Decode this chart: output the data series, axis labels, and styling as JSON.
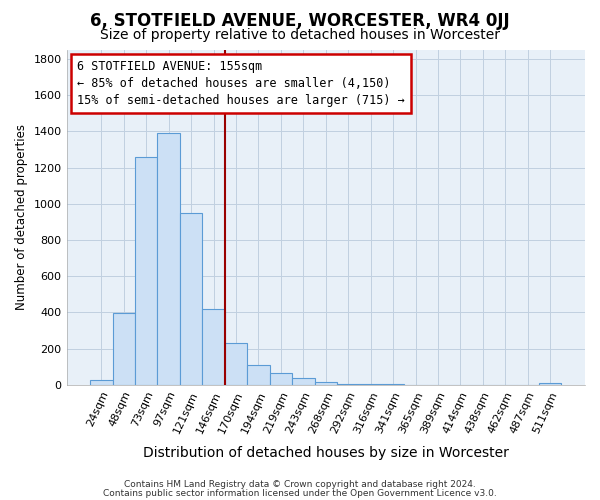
{
  "title": "6, STOTFIELD AVENUE, WORCESTER, WR4 0JJ",
  "subtitle": "Size of property relative to detached houses in Worcester",
  "xlabel": "Distribution of detached houses by size in Worcester",
  "ylabel": "Number of detached properties",
  "bar_labels": [
    "24sqm",
    "48sqm",
    "73sqm",
    "97sqm",
    "121sqm",
    "146sqm",
    "170sqm",
    "194sqm",
    "219sqm",
    "243sqm",
    "268sqm",
    "292sqm",
    "316sqm",
    "341sqm",
    "365sqm",
    "389sqm",
    "414sqm",
    "438sqm",
    "462sqm",
    "487sqm",
    "511sqm"
  ],
  "bar_values": [
    25,
    395,
    1260,
    1390,
    950,
    420,
    230,
    110,
    65,
    40,
    15,
    5,
    5,
    3,
    2,
    2,
    2,
    1,
    1,
    1,
    10
  ],
  "bar_color": "#cce0f5",
  "bar_edge_color": "#5b9bd5",
  "ylim": [
    0,
    1850
  ],
  "yticks": [
    0,
    200,
    400,
    600,
    800,
    1000,
    1200,
    1400,
    1600,
    1800
  ],
  "vline_color": "#990000",
  "annotation_box_title": "6 STOTFIELD AVENUE: 155sqm",
  "annotation_line1": "← 85% of detached houses are smaller (4,150)",
  "annotation_line2": "15% of semi-detached houses are larger (715) →",
  "annotation_box_color": "#ffffff",
  "annotation_box_edge_color": "#cc0000",
  "footer_line1": "Contains HM Land Registry data © Crown copyright and database right 2024.",
  "footer_line2": "Contains public sector information licensed under the Open Government Licence v3.0.",
  "background_color": "#ffffff",
  "plot_bg_color": "#e8f0f8",
  "grid_color": "#c0cfe0",
  "title_fontsize": 12,
  "subtitle_fontsize": 10,
  "xlabel_fontsize": 10,
  "ylabel_fontsize": 8.5,
  "tick_fontsize": 8,
  "annotation_fontsize": 8.5,
  "footer_fontsize": 6.5
}
